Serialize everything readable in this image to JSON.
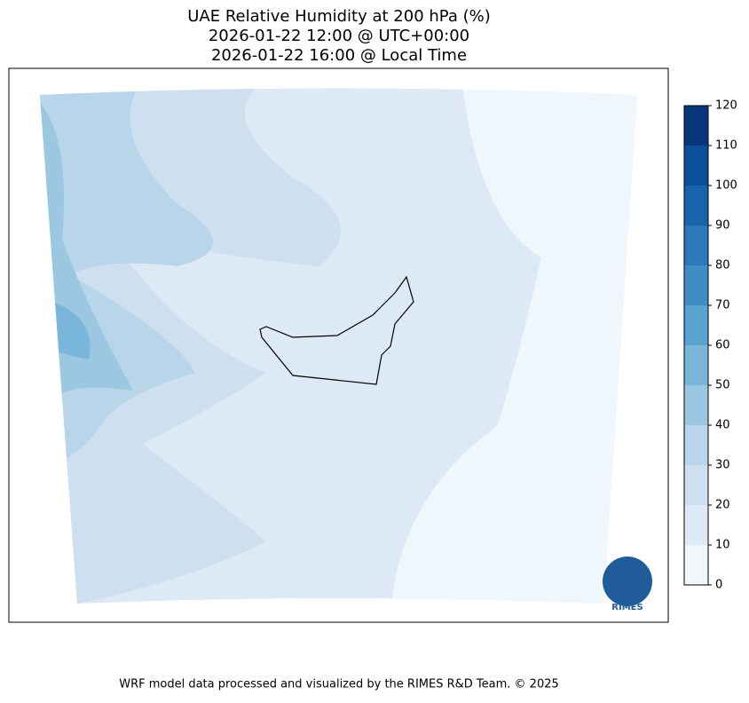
{
  "title_lines": [
    "UAE Relative Humidity at 200 hPa (%)",
    "2026-01-22 12:00 @ UTC+00:00",
    "2026-01-22 16:00 @ Local Time"
  ],
  "colorbar": {
    "ticks": [
      0,
      10,
      20,
      30,
      40,
      50,
      60,
      70,
      80,
      90,
      100,
      110,
      120
    ],
    "colors": [
      "#eff6fc",
      "#dde9f5",
      "#cedff0",
      "#b8d5ea",
      "#9bc7e0",
      "#7ab6d9",
      "#5aa2cf",
      "#3f8dc3",
      "#2b79b9",
      "#1764ab",
      "#0a4f98",
      "#08367a"
    ]
  },
  "logo": "RIMES",
  "footer": "WRF model data processed and visualized by the RIMES R&D Team. © 2025"
}
